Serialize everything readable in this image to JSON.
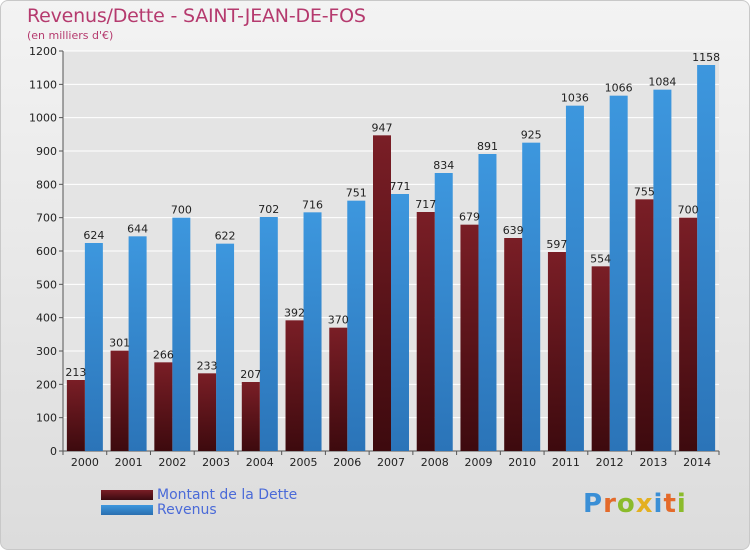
{
  "header": {
    "title": "Revenus/Dette - SAINT-JEAN-DE-FOS",
    "subtitle": "(en milliers d'€)"
  },
  "logo": {
    "text": "Proxiti",
    "letter_colors": [
      "#3a8fd6",
      "#e46a2a",
      "#8bbb2b",
      "#e4b020",
      "#3a8fd6",
      "#e46a2a",
      "#8bbb2b"
    ]
  },
  "colors": {
    "dette": "#7a1e26",
    "revenus": "#3d97de",
    "axis_text": "#222222",
    "grid": "#ffffff"
  },
  "chart_data": {
    "type": "bar",
    "title": "Revenus/Dette - SAINT-JEAN-DE-FOS",
    "subtitle": "(en milliers d'€)",
    "categories": [
      "2000",
      "2001",
      "2002",
      "2003",
      "2004",
      "2005",
      "2006",
      "2007",
      "2008",
      "2009",
      "2010",
      "2011",
      "2012",
      "2013",
      "2014"
    ],
    "series": [
      {
        "name": "Montant de la Dette",
        "values": [
          213,
          301,
          266,
          233,
          207,
          392,
          370,
          947,
          717,
          679,
          639,
          597,
          554,
          755,
          700
        ]
      },
      {
        "name": "Revenus",
        "values": [
          624,
          644,
          700,
          622,
          702,
          716,
          751,
          771,
          834,
          891,
          925,
          1036,
          1066,
          1084,
          1158
        ]
      }
    ],
    "xlabel": "",
    "ylabel": "",
    "ylim": [
      0,
      1200
    ],
    "yticks": [
      0,
      100,
      200,
      300,
      400,
      500,
      600,
      700,
      800,
      900,
      1000,
      1100,
      1200
    ],
    "grid": true,
    "legend": "bottom-left"
  }
}
